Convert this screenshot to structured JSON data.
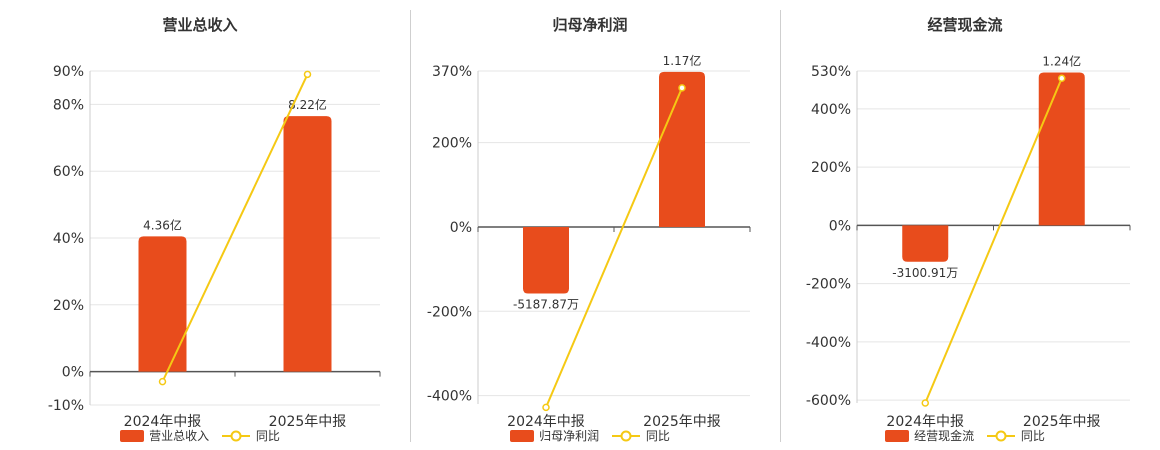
{
  "colors": {
    "bar": "#e84c1c",
    "line": "#f5c914",
    "grid": "#e5e5e5",
    "axis": "#555555"
  },
  "legend_line_label": "同比",
  "chart_data": [
    {
      "type": "bar",
      "title": "营业总收入",
      "categories": [
        "2024年中报",
        "2025年中报"
      ],
      "series": [
        {
          "name": "营业总收入",
          "type": "bar",
          "values": [
            40.5,
            76.5
          ],
          "labels": [
            "4.36亿",
            "8.22亿"
          ]
        },
        {
          "name": "同比",
          "type": "line",
          "values": [
            -3,
            89
          ]
        }
      ],
      "ylim": [
        -10,
        90
      ],
      "yticks": [
        -10,
        0,
        20,
        40,
        60,
        80,
        90
      ],
      "ytick_labels": [
        "-10%",
        "0%",
        "20%",
        "40%",
        "60%",
        "80%",
        "90%"
      ],
      "grid": true
    },
    {
      "type": "bar",
      "title": "归母净利润",
      "categories": [
        "2024年中报",
        "2025年中报"
      ],
      "series": [
        {
          "name": "归母净利润",
          "type": "bar",
          "values": [
            -158,
            368
          ],
          "labels": [
            "-5187.87万",
            "1.17亿"
          ]
        },
        {
          "name": "同比",
          "type": "line",
          "values": [
            -428,
            330
          ]
        }
      ],
      "ylim": [
        -420,
        370
      ],
      "yticks": [
        -400,
        -200,
        0,
        200,
        370
      ],
      "ytick_labels": [
        "-400%",
        "-200%",
        "0%",
        "200%",
        "370%"
      ],
      "grid": true
    },
    {
      "type": "bar",
      "title": "经营现金流",
      "categories": [
        "2024年中报",
        "2025年中报"
      ],
      "series": [
        {
          "name": "经营现金流",
          "type": "bar",
          "values": [
            -125,
            525
          ],
          "labels": [
            "-3100.91万",
            "1.24亿"
          ]
        },
        {
          "name": "同比",
          "type": "line",
          "values": [
            -610,
            505
          ]
        }
      ],
      "ylim": [
        -610,
        530
      ],
      "yticks": [
        -600,
        -400,
        -200,
        0,
        200,
        400,
        530
      ],
      "ytick_labels": [
        "-600%",
        "-400%",
        "-200%",
        "0%",
        "200%",
        "400%",
        "530%"
      ],
      "grid": true
    }
  ]
}
